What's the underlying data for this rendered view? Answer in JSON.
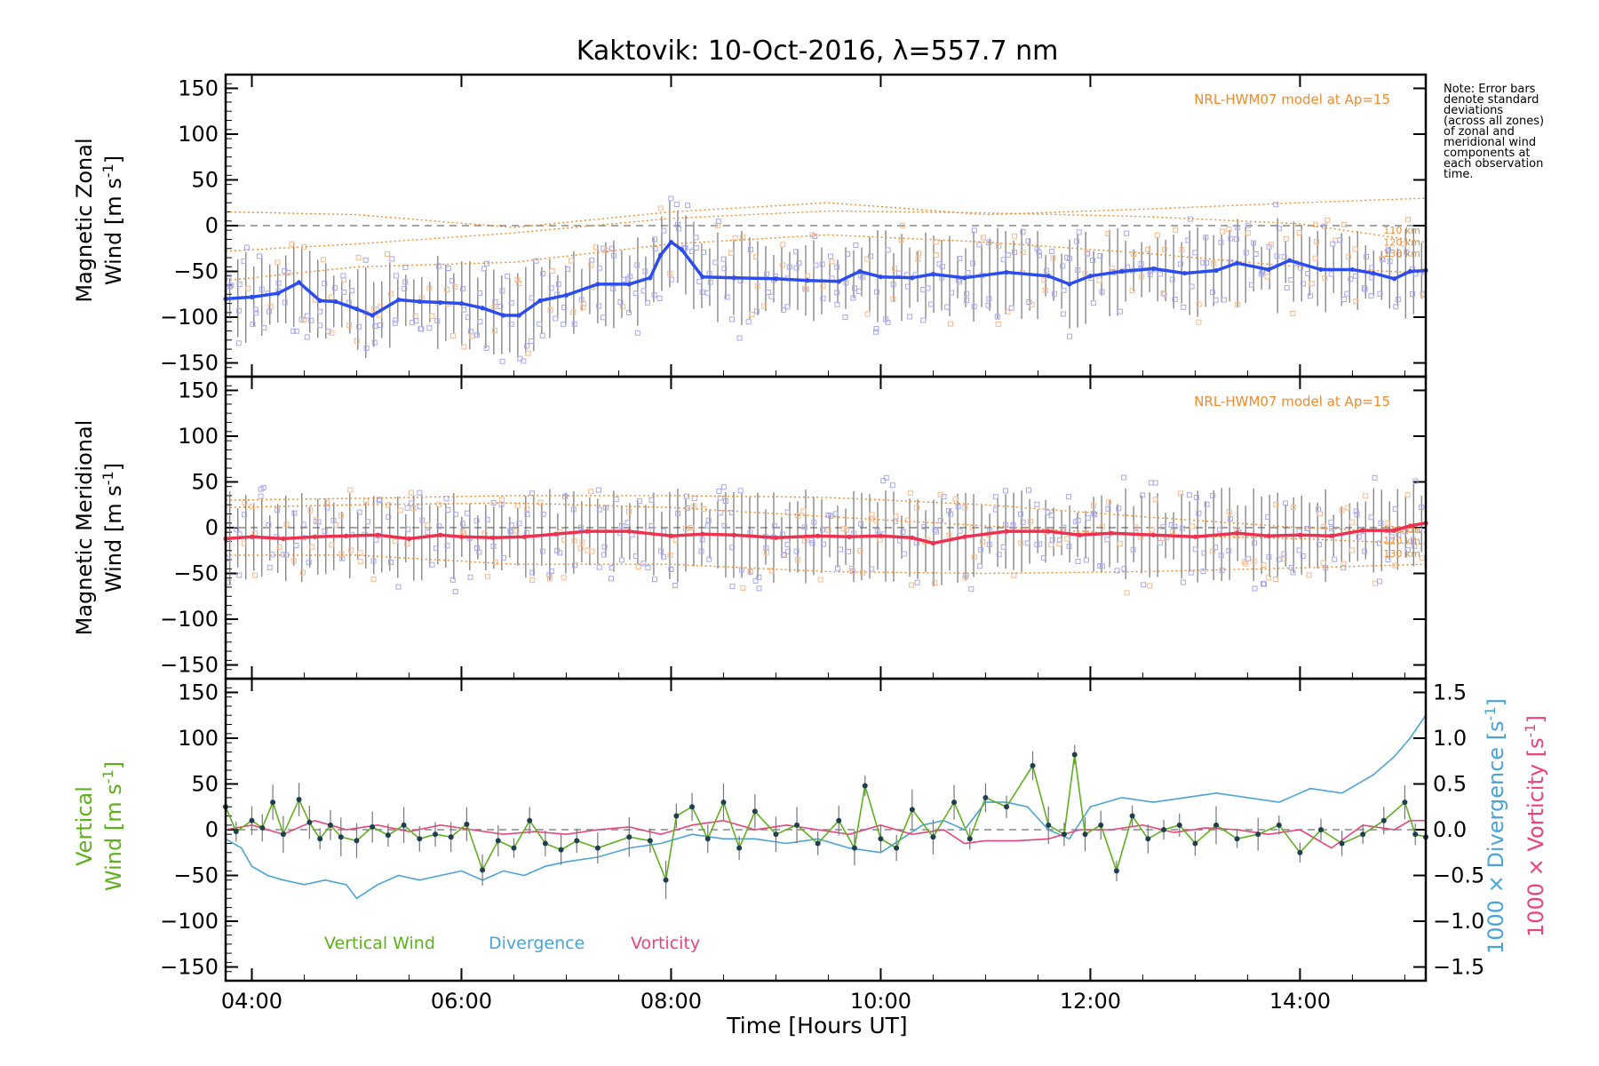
{
  "chart_data": {
    "title": "Kaktovik: 10-Oct-2016, λ=557.7 nm",
    "note_lines": [
      "Note: Error bars",
      "denote standard",
      "deviations",
      "(across all zones)",
      "of zonal and",
      "meridional wind",
      "components at",
      "each observation",
      "time."
    ],
    "xlabel": "Time [Hours UT]",
    "xlim_hours": [
      3.75,
      15.2
    ],
    "x_ticks": [
      4,
      6,
      8,
      10,
      12,
      14
    ],
    "x_tick_labels": [
      "04:00",
      "06:00",
      "08:00",
      "10:00",
      "12:00",
      "14:00"
    ],
    "colors": {
      "zonal": "#2a4cf0",
      "meridional": "#f0304f",
      "vertical": "#5faf1e",
      "divergence": "#4aa3d8",
      "vorticity": "#e8447a",
      "model": "#f08a2a",
      "samples": "#a8a8ee",
      "samples_alt": "#f8b88a",
      "errorbar": "#555555"
    },
    "panels": [
      {
        "type": "line",
        "ylabel_line1": "Magnetic Zonal",
        "ylabel_line2": "Wind [m s",
        "ylabel_sup": "-1",
        "ylabel_end": "]",
        "ylim": [
          -165,
          165
        ],
        "y_ticks": [
          150,
          100,
          50,
          0,
          -50,
          -100,
          -150
        ],
        "y_tick_labels": [
          "150",
          "100",
          "50",
          "0",
          "−50",
          "−100",
          "−150"
        ],
        "model_label": "NRL-HWM07 model at Ap=15",
        "altitude_labels": [
          "110 km",
          "120 km",
          "130 km"
        ],
        "altitude_values": [
          -5,
          -18,
          -30
        ],
        "series": {
          "x": [
            3.75,
            4.0,
            4.25,
            4.45,
            4.65,
            4.8,
            5.0,
            5.15,
            5.4,
            5.6,
            5.8,
            6.0,
            6.2,
            6.4,
            6.55,
            6.75,
            7.0,
            7.3,
            7.6,
            7.8,
            7.9,
            8.0,
            8.1,
            8.3,
            8.6,
            9.0,
            9.3,
            9.6,
            9.8,
            10.0,
            10.3,
            10.5,
            10.8,
            11.2,
            11.6,
            11.8,
            12.0,
            12.3,
            12.6,
            12.9,
            13.2,
            13.4,
            13.7,
            13.9,
            14.2,
            14.5,
            14.7,
            14.9,
            15.05,
            15.2
          ],
          "y": [
            -80,
            -78,
            -74,
            -62,
            -82,
            -83,
            -91,
            -98,
            -81,
            -83,
            -84,
            -85,
            -90,
            -98,
            -98,
            -82,
            -76,
            -64,
            -64,
            -57,
            -32,
            -18,
            -26,
            -56,
            -57,
            -58,
            -60,
            -61,
            -50,
            -56,
            -57,
            -53,
            -57,
            -51,
            -55,
            -64,
            -55,
            -50,
            -47,
            -52,
            -49,
            -41,
            -48,
            -38,
            -48,
            -48,
            -52,
            -58,
            -50,
            -49
          ]
        },
        "model_curves": [
          {
            "x": [
              3.75,
              5.0,
              6.5,
              8.0,
              9.5,
              11.0,
              12.5,
              14.0,
              15.2
            ],
            "y": [
              15,
              12,
              -2,
              15,
              25,
              12,
              18,
              25,
              30
            ]
          },
          {
            "x": [
              3.75,
              5.0,
              6.5,
              8.0,
              9.5,
              11.0,
              12.5,
              14.0,
              15.2
            ],
            "y": [
              -28,
              -20,
              -8,
              8,
              16,
              14,
              10,
              2,
              -18
            ]
          },
          {
            "x": [
              3.75,
              5.0,
              6.5,
              8.0,
              9.5,
              11.0,
              12.5,
              14.0,
              15.2
            ],
            "y": [
              -60,
              -45,
              -40,
              -20,
              -10,
              -18,
              -30,
              -45,
              -52
            ]
          }
        ]
      },
      {
        "type": "line",
        "ylabel_line1": "Magnetic Meridional",
        "ylabel_line2": "Wind [m s",
        "ylabel_sup": "-1",
        "ylabel_end": "]",
        "ylim": [
          -165,
          165
        ],
        "y_ticks": [
          150,
          100,
          50,
          0,
          -50,
          -100,
          -150
        ],
        "y_tick_labels": [
          "150",
          "100",
          "50",
          "0",
          "−50",
          "−100",
          "−150"
        ],
        "model_label": "NRL-HWM07 model at Ap=15",
        "altitude_labels": [
          "110 km",
          "120 km",
          "130 km"
        ],
        "altitude_values": [
          -2,
          -14,
          -28
        ],
        "series": {
          "x": [
            3.75,
            4.0,
            4.3,
            4.6,
            4.9,
            5.2,
            5.5,
            5.8,
            6.0,
            6.3,
            6.6,
            6.9,
            7.2,
            7.6,
            8.0,
            8.3,
            8.6,
            9.0,
            9.4,
            9.7,
            10.0,
            10.3,
            10.5,
            10.8,
            11.2,
            11.6,
            11.9,
            12.2,
            12.6,
            13.0,
            13.4,
            13.7,
            14.0,
            14.3,
            14.6,
            14.9,
            15.05,
            15.2
          ],
          "y": [
            -12,
            -10,
            -12,
            -10,
            -9,
            -8,
            -12,
            -8,
            -10,
            -11,
            -10,
            -7,
            -4,
            -4,
            -9,
            -7,
            -8,
            -11,
            -9,
            -10,
            -9,
            -11,
            -17,
            -10,
            -4,
            -4,
            -8,
            -6,
            -8,
            -10,
            -6,
            -9,
            -8,
            -9,
            -3,
            -3,
            2,
            5
          ]
        },
        "model_curves": [
          {
            "x": [
              3.75,
              5.0,
              6.5,
              8.0,
              9.5,
              11.0,
              12.5,
              14.0,
              15.2
            ],
            "y": [
              30,
              32,
              35,
              35,
              33,
              25,
              12,
              0,
              -5
            ]
          },
          {
            "x": [
              3.75,
              5.0,
              6.5,
              8.0,
              9.5,
              11.0,
              12.5,
              14.0,
              15.2
            ],
            "y": [
              22,
              25,
              27,
              22,
              12,
              2,
              -8,
              -12,
              -18
            ]
          },
          {
            "x": [
              3.75,
              5.0,
              6.5,
              8.0,
              9.5,
              11.0,
              12.5,
              14.0,
              15.2
            ],
            "y": [
              -30,
              -30,
              -40,
              -40,
              -48,
              -50,
              -48,
              -44,
              -40
            ]
          }
        ]
      },
      {
        "type": "line",
        "ylabel_vertical_line1": "Vertical",
        "ylabel_vertical_line2": "Wind [m s",
        "ylabel_sup": "-1",
        "ylabel_end": "]",
        "ylim": [
          -165,
          165
        ],
        "y_ticks": [
          150,
          100,
          50,
          0,
          -50,
          -100,
          -150
        ],
        "y_tick_labels": [
          "150",
          "100",
          "50",
          "0",
          "−50",
          "−100",
          "−150"
        ],
        "y2lim": [
          -1.65,
          1.65
        ],
        "y2_ticks": [
          1.5,
          1.0,
          0.5,
          0.0,
          -0.5,
          -1.0,
          -1.5
        ],
        "y2_tick_labels": [
          "1.5",
          "1.0",
          "0.5",
          "0.0",
          "−0.5",
          "−1.0",
          "−1.5"
        ],
        "y2_label_divergence": "1000 × Divergence [s",
        "y2_label_vorticity": "1000 × Vorticity [s",
        "legend": [
          "Vertical Wind",
          "Divergence",
          "Vorticity"
        ],
        "vertical_wind": {
          "x": [
            3.75,
            3.85,
            4.0,
            4.1,
            4.2,
            4.3,
            4.45,
            4.55,
            4.65,
            4.75,
            4.85,
            5.0,
            5.15,
            5.3,
            5.45,
            5.6,
            5.75,
            5.9,
            6.05,
            6.2,
            6.35,
            6.5,
            6.65,
            6.8,
            6.95,
            7.1,
            7.3,
            7.6,
            7.8,
            7.95,
            8.05,
            8.2,
            8.35,
            8.5,
            8.65,
            8.8,
            9.0,
            9.2,
            9.4,
            9.6,
            9.75,
            9.85,
            10.0,
            10.15,
            10.3,
            10.5,
            10.7,
            10.85,
            11.0,
            11.2,
            11.45,
            11.6,
            11.75,
            11.85,
            11.95,
            12.1,
            12.25,
            12.4,
            12.55,
            12.7,
            12.85,
            13.0,
            13.2,
            13.4,
            13.6,
            13.8,
            14.0,
            14.2,
            14.4,
            14.6,
            14.8,
            15.0,
            15.1,
            15.2
          ],
          "y": [
            25,
            -2,
            10,
            2,
            30,
            -5,
            33,
            8,
            -10,
            5,
            -8,
            -12,
            3,
            -6,
            5,
            -10,
            -5,
            -8,
            6,
            -44,
            -12,
            -20,
            10,
            -15,
            -22,
            -12,
            -20,
            -8,
            -12,
            -55,
            15,
            25,
            -10,
            30,
            -20,
            20,
            -5,
            5,
            -15,
            10,
            -20,
            48,
            -10,
            -20,
            22,
            -8,
            30,
            -10,
            35,
            25,
            70,
            5,
            -5,
            82,
            -5,
            5,
            -45,
            15,
            -10,
            0,
            5,
            -15,
            5,
            -10,
            -5,
            5,
            -25,
            0,
            -15,
            -5,
            10,
            30,
            -5,
            -8
          ]
        },
        "divergence": {
          "x": [
            3.75,
            3.9,
            4.0,
            4.15,
            4.3,
            4.5,
            4.7,
            4.9,
            5.0,
            5.2,
            5.4,
            5.6,
            5.8,
            6.0,
            6.2,
            6.4,
            6.6,
            6.8,
            7.0,
            7.3,
            7.6,
            7.9,
            8.2,
            8.5,
            8.8,
            9.1,
            9.4,
            9.7,
            10.0,
            10.2,
            10.4,
            10.6,
            10.8,
            11.0,
            11.2,
            11.4,
            11.6,
            11.8,
            12.0,
            12.3,
            12.6,
            12.9,
            13.2,
            13.5,
            13.8,
            14.1,
            14.4,
            14.7,
            14.9,
            15.05,
            15.2
          ],
          "y": [
            -0.1,
            -0.2,
            -0.4,
            -0.5,
            -0.55,
            -0.6,
            -0.55,
            -0.6,
            -0.75,
            -0.6,
            -0.5,
            -0.55,
            -0.5,
            -0.45,
            -0.55,
            -0.45,
            -0.5,
            -0.4,
            -0.35,
            -0.3,
            -0.2,
            -0.15,
            -0.05,
            -0.1,
            -0.1,
            -0.15,
            -0.1,
            -0.2,
            -0.25,
            -0.1,
            0.05,
            0.1,
            0.0,
            0.3,
            0.3,
            0.25,
            0.0,
            -0.1,
            0.25,
            0.35,
            0.3,
            0.35,
            0.4,
            0.35,
            0.3,
            0.45,
            0.4,
            0.6,
            0.8,
            1.0,
            1.25
          ]
        },
        "vorticity": {
          "x": [
            3.75,
            4.0,
            4.3,
            4.6,
            4.9,
            5.2,
            5.5,
            5.8,
            6.1,
            6.4,
            6.7,
            7.0,
            7.3,
            7.6,
            7.9,
            8.2,
            8.5,
            8.8,
            9.1,
            9.4,
            9.7,
            10.0,
            10.3,
            10.6,
            10.8,
            11.0,
            11.3,
            11.6,
            11.9,
            12.2,
            12.5,
            12.8,
            13.1,
            13.4,
            13.7,
            14.0,
            14.3,
            14.6,
            14.9,
            15.05,
            15.2
          ],
          "y": [
            0.0,
            0.05,
            -0.05,
            0.1,
            0.0,
            0.05,
            -0.02,
            0.05,
            0.0,
            -0.05,
            -0.02,
            -0.05,
            0.0,
            0.03,
            -0.05,
            0.05,
            0.1,
            0.0,
            0.05,
            0.0,
            -0.05,
            0.05,
            -0.05,
            0.0,
            -0.15,
            -0.12,
            -0.12,
            -0.1,
            0.0,
            0.0,
            0.05,
            -0.03,
            0.02,
            0.0,
            -0.05,
            0.0,
            -0.2,
            0.05,
            0.0,
            0.1,
            0.1
          ]
        }
      }
    ]
  }
}
